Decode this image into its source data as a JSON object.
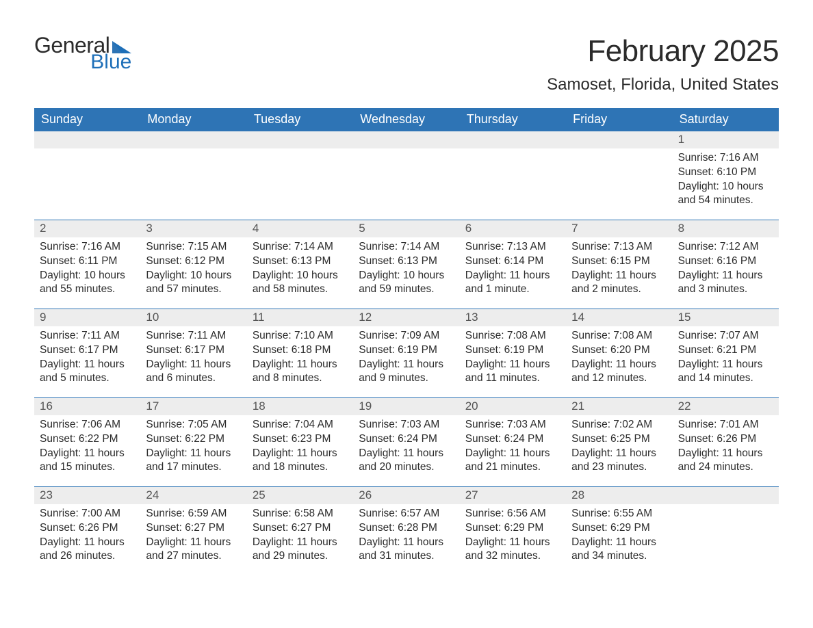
{
  "logo": {
    "text_general": "General",
    "text_blue": "Blue",
    "icon_color": "#1e6fb8"
  },
  "title": "February 2025",
  "location": "Samoset, Florida, United States",
  "colors": {
    "header_bg": "#2e74b5",
    "header_text": "#ffffff",
    "daynum_bg": "#ededed",
    "daynum_text": "#555555",
    "body_text": "#2b2b2b",
    "week_border": "#2e74b5"
  },
  "weekdays": [
    "Sunday",
    "Monday",
    "Tuesday",
    "Wednesday",
    "Thursday",
    "Friday",
    "Saturday"
  ],
  "weeks": [
    [
      {
        "day": "",
        "sunrise": "",
        "sunset": "",
        "daylight": ""
      },
      {
        "day": "",
        "sunrise": "",
        "sunset": "",
        "daylight": ""
      },
      {
        "day": "",
        "sunrise": "",
        "sunset": "",
        "daylight": ""
      },
      {
        "day": "",
        "sunrise": "",
        "sunset": "",
        "daylight": ""
      },
      {
        "day": "",
        "sunrise": "",
        "sunset": "",
        "daylight": ""
      },
      {
        "day": "",
        "sunrise": "",
        "sunset": "",
        "daylight": ""
      },
      {
        "day": "1",
        "sunrise": "Sunrise: 7:16 AM",
        "sunset": "Sunset: 6:10 PM",
        "daylight": "Daylight: 10 hours and 54 minutes."
      }
    ],
    [
      {
        "day": "2",
        "sunrise": "Sunrise: 7:16 AM",
        "sunset": "Sunset: 6:11 PM",
        "daylight": "Daylight: 10 hours and 55 minutes."
      },
      {
        "day": "3",
        "sunrise": "Sunrise: 7:15 AM",
        "sunset": "Sunset: 6:12 PM",
        "daylight": "Daylight: 10 hours and 57 minutes."
      },
      {
        "day": "4",
        "sunrise": "Sunrise: 7:14 AM",
        "sunset": "Sunset: 6:13 PM",
        "daylight": "Daylight: 10 hours and 58 minutes."
      },
      {
        "day": "5",
        "sunrise": "Sunrise: 7:14 AM",
        "sunset": "Sunset: 6:13 PM",
        "daylight": "Daylight: 10 hours and 59 minutes."
      },
      {
        "day": "6",
        "sunrise": "Sunrise: 7:13 AM",
        "sunset": "Sunset: 6:14 PM",
        "daylight": "Daylight: 11 hours and 1 minute."
      },
      {
        "day": "7",
        "sunrise": "Sunrise: 7:13 AM",
        "sunset": "Sunset: 6:15 PM",
        "daylight": "Daylight: 11 hours and 2 minutes."
      },
      {
        "day": "8",
        "sunrise": "Sunrise: 7:12 AM",
        "sunset": "Sunset: 6:16 PM",
        "daylight": "Daylight: 11 hours and 3 minutes."
      }
    ],
    [
      {
        "day": "9",
        "sunrise": "Sunrise: 7:11 AM",
        "sunset": "Sunset: 6:17 PM",
        "daylight": "Daylight: 11 hours and 5 minutes."
      },
      {
        "day": "10",
        "sunrise": "Sunrise: 7:11 AM",
        "sunset": "Sunset: 6:17 PM",
        "daylight": "Daylight: 11 hours and 6 minutes."
      },
      {
        "day": "11",
        "sunrise": "Sunrise: 7:10 AM",
        "sunset": "Sunset: 6:18 PM",
        "daylight": "Daylight: 11 hours and 8 minutes."
      },
      {
        "day": "12",
        "sunrise": "Sunrise: 7:09 AM",
        "sunset": "Sunset: 6:19 PM",
        "daylight": "Daylight: 11 hours and 9 minutes."
      },
      {
        "day": "13",
        "sunrise": "Sunrise: 7:08 AM",
        "sunset": "Sunset: 6:19 PM",
        "daylight": "Daylight: 11 hours and 11 minutes."
      },
      {
        "day": "14",
        "sunrise": "Sunrise: 7:08 AM",
        "sunset": "Sunset: 6:20 PM",
        "daylight": "Daylight: 11 hours and 12 minutes."
      },
      {
        "day": "15",
        "sunrise": "Sunrise: 7:07 AM",
        "sunset": "Sunset: 6:21 PM",
        "daylight": "Daylight: 11 hours and 14 minutes."
      }
    ],
    [
      {
        "day": "16",
        "sunrise": "Sunrise: 7:06 AM",
        "sunset": "Sunset: 6:22 PM",
        "daylight": "Daylight: 11 hours and 15 minutes."
      },
      {
        "day": "17",
        "sunrise": "Sunrise: 7:05 AM",
        "sunset": "Sunset: 6:22 PM",
        "daylight": "Daylight: 11 hours and 17 minutes."
      },
      {
        "day": "18",
        "sunrise": "Sunrise: 7:04 AM",
        "sunset": "Sunset: 6:23 PM",
        "daylight": "Daylight: 11 hours and 18 minutes."
      },
      {
        "day": "19",
        "sunrise": "Sunrise: 7:03 AM",
        "sunset": "Sunset: 6:24 PM",
        "daylight": "Daylight: 11 hours and 20 minutes."
      },
      {
        "day": "20",
        "sunrise": "Sunrise: 7:03 AM",
        "sunset": "Sunset: 6:24 PM",
        "daylight": "Daylight: 11 hours and 21 minutes."
      },
      {
        "day": "21",
        "sunrise": "Sunrise: 7:02 AM",
        "sunset": "Sunset: 6:25 PM",
        "daylight": "Daylight: 11 hours and 23 minutes."
      },
      {
        "day": "22",
        "sunrise": "Sunrise: 7:01 AM",
        "sunset": "Sunset: 6:26 PM",
        "daylight": "Daylight: 11 hours and 24 minutes."
      }
    ],
    [
      {
        "day": "23",
        "sunrise": "Sunrise: 7:00 AM",
        "sunset": "Sunset: 6:26 PM",
        "daylight": "Daylight: 11 hours and 26 minutes."
      },
      {
        "day": "24",
        "sunrise": "Sunrise: 6:59 AM",
        "sunset": "Sunset: 6:27 PM",
        "daylight": "Daylight: 11 hours and 27 minutes."
      },
      {
        "day": "25",
        "sunrise": "Sunrise: 6:58 AM",
        "sunset": "Sunset: 6:27 PM",
        "daylight": "Daylight: 11 hours and 29 minutes."
      },
      {
        "day": "26",
        "sunrise": "Sunrise: 6:57 AM",
        "sunset": "Sunset: 6:28 PM",
        "daylight": "Daylight: 11 hours and 31 minutes."
      },
      {
        "day": "27",
        "sunrise": "Sunrise: 6:56 AM",
        "sunset": "Sunset: 6:29 PM",
        "daylight": "Daylight: 11 hours and 32 minutes."
      },
      {
        "day": "28",
        "sunrise": "Sunrise: 6:55 AM",
        "sunset": "Sunset: 6:29 PM",
        "daylight": "Daylight: 11 hours and 34 minutes."
      },
      {
        "day": "",
        "sunrise": "",
        "sunset": "",
        "daylight": ""
      }
    ]
  ]
}
